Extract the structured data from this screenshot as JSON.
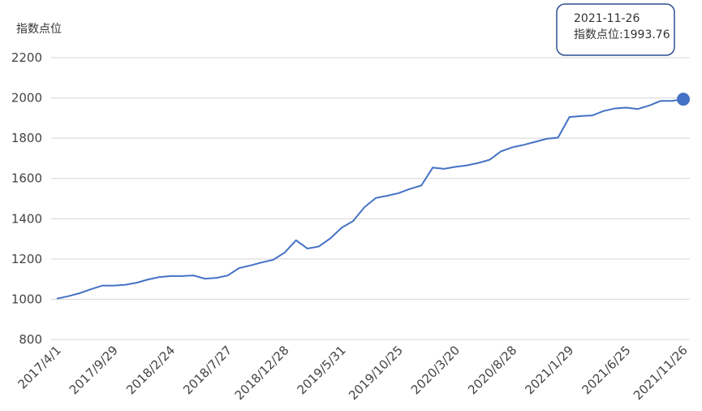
{
  "chart_data": {
    "type": "line",
    "y_label": "指数点位",
    "color": "#4472c4",
    "categories": [
      "2017/4/1",
      null,
      null,
      null,
      null,
      "2017/9/29",
      null,
      null,
      null,
      null,
      "2018/2/24",
      null,
      null,
      null,
      null,
      "2018/7/27",
      null,
      null,
      null,
      null,
      "2018/12/28",
      null,
      null,
      null,
      null,
      "2019/5/31",
      null,
      null,
      null,
      null,
      "2019/10/25",
      null,
      null,
      null,
      null,
      "2020/3/20",
      null,
      null,
      null,
      null,
      "2020/8/28",
      null,
      null,
      null,
      null,
      "2021/1/29",
      null,
      null,
      null,
      null,
      "2021/6/25",
      null,
      null,
      null,
      null,
      "2021/11/26"
    ],
    "values": [
      1003,
      1015,
      1030,
      1050,
      1068,
      1068,
      1072,
      1082,
      1098,
      1110,
      1115,
      1115,
      1118,
      1102,
      1106,
      1118,
      1155,
      1168,
      1183,
      1196,
      1232,
      1293,
      1252,
      1262,
      1302,
      1355,
      1388,
      1457,
      1503,
      1514,
      1527,
      1548,
      1565,
      1654,
      1648,
      1658,
      1665,
      1677,
      1693,
      1735,
      1755,
      1767,
      1782,
      1797,
      1803,
      1905,
      1910,
      1913,
      1935,
      1948,
      1952,
      1945,
      1962,
      1985,
      1985,
      1993.76
    ],
    "ylim": [
      800,
      2200
    ],
    "yticks": [
      800,
      1000,
      1200,
      1400,
      1600,
      1800,
      2000,
      2200
    ],
    "grid": true,
    "tooltip": {
      "title": "2021-11-26",
      "name": "指数点位:"
    }
  }
}
